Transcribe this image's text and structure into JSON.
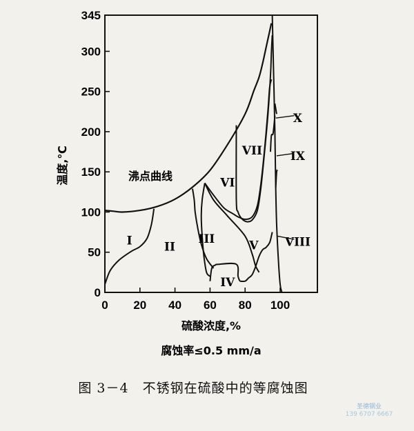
{
  "chart_data": {
    "type": "line",
    "title": "",
    "xlabel": "硫酸浓度,%",
    "ylabel": "温度,℃",
    "subtitle": "腐蚀率≤0.5 mm/a",
    "xlim": [
      0,
      100
    ],
    "ylim": [
      0,
      345
    ],
    "xticks": [
      "0",
      "20",
      "40",
      "60",
      "80",
      "100"
    ],
    "yticks": [
      "0",
      "50",
      "100",
      "150",
      "200",
      "250",
      "300",
      "345"
    ],
    "grid": false,
    "boiling_curve": {
      "label": "沸点曲线",
      "x": [
        0,
        5,
        10,
        20,
        30,
        40,
        50,
        60,
        70,
        80,
        85,
        88,
        90,
        92,
        94,
        95
      ],
      "y": [
        102,
        101,
        100,
        102,
        107,
        116,
        131,
        152,
        184,
        222,
        251,
        268,
        285,
        305,
        325,
        335
      ]
    },
    "boundaries": [
      {
        "x": [
          0,
          3,
          8,
          15,
          20,
          24,
          26.5,
          28
        ],
        "y": [
          10,
          27,
          40,
          51,
          57,
          67,
          84,
          104
        ]
      },
      {
        "x": [
          50,
          51,
          51.5,
          53,
          55,
          58,
          62
        ],
        "y": [
          129,
          115,
          100,
          80,
          60,
          42,
          30
        ]
      },
      {
        "x": [
          57,
          55.5,
          55,
          55.5,
          56.5,
          58,
          60
        ],
        "y": [
          136,
          115,
          95,
          70,
          45,
          25,
          20
        ]
      },
      {
        "x": [
          60,
          61,
          63,
          65,
          75,
          76,
          77
        ],
        "y": [
          14,
          30,
          34,
          35,
          35,
          20,
          14
        ]
      },
      {
        "x": [
          57,
          62,
          70,
          80,
          84,
          86,
          88
        ],
        "y": [
          136,
          115,
          95,
          70,
          48,
          33,
          25
        ]
      },
      {
        "x": [
          77,
          80,
          82,
          84,
          86,
          88,
          90,
          92,
          94,
          95,
          95.5
        ],
        "y": [
          14,
          14,
          18,
          22,
          32,
          45,
          53,
          56,
          62,
          70,
          75
        ]
      },
      {
        "x": [
          57,
          62,
          68,
          73,
          76,
          80,
          84,
          87,
          89,
          91,
          93,
          94,
          95
        ],
        "y": [
          136,
          121,
          105,
          98,
          94,
          91,
          94,
          108,
          135,
          175,
          225,
          255,
          265
        ]
      },
      {
        "x": [
          75,
          75,
          76,
          78,
          81,
          84,
          87,
          89,
          91,
          93,
          94.5,
          95,
          95.5
        ],
        "y": [
          208,
          115,
          100,
          92,
          88,
          90,
          102,
          130,
          172,
          220,
          270,
          298,
          320
        ]
      },
      {
        "x": [
          94.5,
          95,
          96,
          97
        ],
        "y": [
          175,
          195,
          198,
          220
        ]
      },
      {
        "x": [
          97,
          98
        ],
        "y": [
          235,
          222
        ]
      },
      {
        "x": [
          97.5,
          98,
          98.5
        ],
        "y": [
          130,
          150,
          152
        ]
      },
      {
        "x": [
          95.5,
          96,
          97,
          97.5,
          98,
          99,
          100,
          101
        ],
        "y": [
          345,
          300,
          200,
          130,
          85,
          40,
          10,
          0
        ]
      }
    ],
    "annotations": [
      {
        "text": "I",
        "x": 14,
        "y": 65
      },
      {
        "text": "II",
        "x": 37,
        "y": 57
      },
      {
        "text": "III",
        "x": 58,
        "y": 67
      },
      {
        "text": "IV",
        "x": 70,
        "y": 13
      },
      {
        "text": "V",
        "x": 85,
        "y": 59
      },
      {
        "text": "VI",
        "x": 70,
        "y": 137
      },
      {
        "text": "VII",
        "x": 84,
        "y": 177
      },
      {
        "text": "VIII",
        "x": 110,
        "y": 63
      },
      {
        "text": "IX",
        "x": 110,
        "y": 170
      },
      {
        "text": "X",
        "x": 110,
        "y": 217
      }
    ]
  },
  "caption": "图 3－4　不锈钢在硫酸中的等腐蚀图",
  "watermark": {
    "line1": "圣德钢业",
    "line2": "139 6707 6667"
  }
}
